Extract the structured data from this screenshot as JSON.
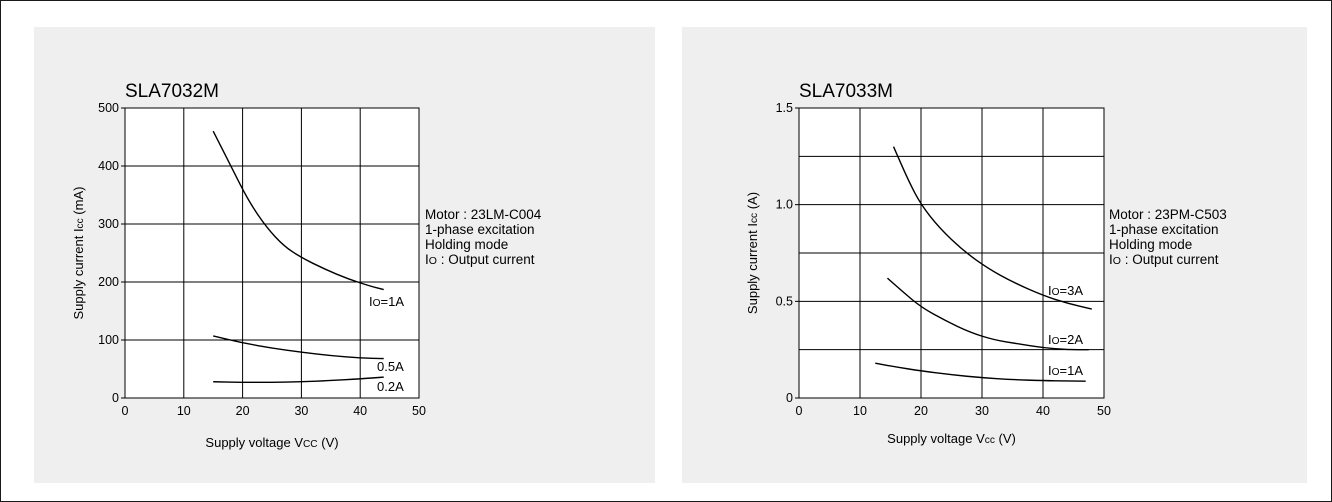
{
  "chart_data": [
    {
      "type": "line",
      "title": "SLA7032M",
      "xlabel": "Supply voltage Vcc (V)",
      "ylabel": "Supply current Icc (mA)",
      "xlim": [
        0,
        50
      ],
      "ylim": [
        0,
        500
      ],
      "xticks": [
        0,
        10,
        20,
        30,
        40,
        50
      ],
      "yticks": [
        0,
        100,
        200,
        300,
        400,
        500
      ],
      "xtick_labels": [
        "0",
        "10",
        "20",
        "30",
        "40",
        "50"
      ],
      "ytick_labels": [
        "0",
        "100",
        "200",
        "300",
        "400",
        "500"
      ],
      "grid": true,
      "notes": [
        "Motor : 23LM-C004",
        "1-phase excitation",
        "Holding mode",
        "Io : Output current"
      ],
      "series": [
        {
          "name": "Io=1A",
          "points": [
            [
              15,
              460
            ],
            [
              18,
              400
            ],
            [
              21,
              340
            ],
            [
              24,
              295
            ],
            [
              27,
              262
            ],
            [
              30,
              242
            ],
            [
              34,
              222
            ],
            [
              38,
              205
            ],
            [
              42,
              192
            ],
            [
              44,
              187
            ]
          ]
        },
        {
          "name": "0.5A",
          "points": [
            [
              15,
              107
            ],
            [
              20,
              95
            ],
            [
              25,
              86
            ],
            [
              30,
              79
            ],
            [
              35,
              73
            ],
            [
              40,
              69
            ],
            [
              44,
              68
            ]
          ]
        },
        {
          "name": "0.2A",
          "points": [
            [
              15,
              28
            ],
            [
              20,
              27
            ],
            [
              25,
              27
            ],
            [
              30,
              28
            ],
            [
              35,
              30
            ],
            [
              40,
              33
            ],
            [
              44,
              36
            ]
          ]
        }
      ]
    },
    {
      "type": "line",
      "title": "SLA7033M",
      "xlabel": "Supply voltage Vcc (V)",
      "ylabel": "Supply current Icc (A)",
      "xlim": [
        0,
        50
      ],
      "ylim": [
        0,
        1.5
      ],
      "xticks": [
        0,
        10,
        20,
        30,
        40,
        50
      ],
      "yticks": [
        0,
        0.5,
        1.0,
        1.5
      ],
      "xtick_labels": [
        "0",
        "10",
        "20",
        "30",
        "40",
        "50"
      ],
      "ytick_labels": [
        "0",
        "0.5",
        "1.0",
        "1.5"
      ],
      "grid": true,
      "notes": [
        "Motor : 23PM-C503",
        "1-phase excitation",
        "Holding mode",
        "Io : Output current"
      ],
      "series": [
        {
          "name": "Io=3A",
          "points": [
            [
              15.5,
              1.3
            ],
            [
              18,
              1.12
            ],
            [
              20,
              1.0
            ],
            [
              23,
              0.88
            ],
            [
              27,
              0.76
            ],
            [
              31,
              0.67
            ],
            [
              35,
              0.6
            ],
            [
              40,
              0.53
            ],
            [
              44,
              0.49
            ],
            [
              48,
              0.46
            ]
          ]
        },
        {
          "name": "Io=2A",
          "points": [
            [
              14.5,
              0.62
            ],
            [
              17,
              0.55
            ],
            [
              20,
              0.47
            ],
            [
              24,
              0.4
            ],
            [
              28,
              0.34
            ],
            [
              32,
              0.3
            ],
            [
              36,
              0.28
            ],
            [
              40,
              0.26
            ],
            [
              44,
              0.25
            ],
            [
              47.5,
              0.25
            ]
          ]
        },
        {
          "name": "Io=1A",
          "points": [
            [
              12.5,
              0.18
            ],
            [
              16,
              0.16
            ],
            [
              20,
              0.14
            ],
            [
              25,
              0.12
            ],
            [
              30,
              0.105
            ],
            [
              35,
              0.095
            ],
            [
              40,
              0.09
            ],
            [
              44,
              0.088
            ],
            [
              47,
              0.087
            ]
          ]
        }
      ]
    }
  ]
}
